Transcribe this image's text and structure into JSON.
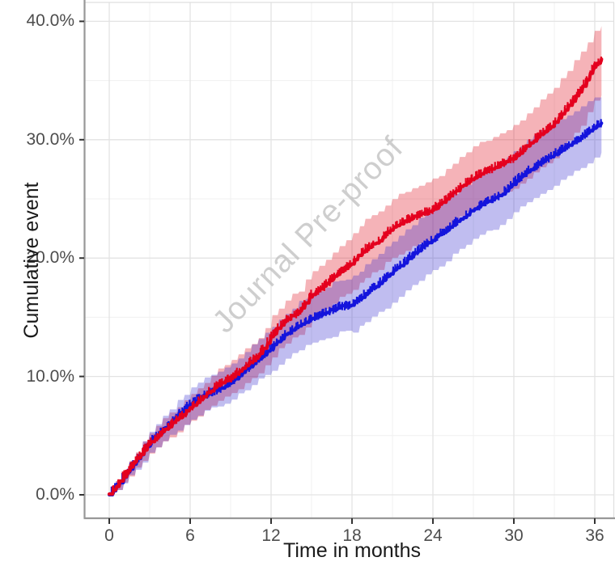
{
  "figure": {
    "watermark": "Journal Pre-proof"
  },
  "axes_style": {
    "tick_label_color": "#4d4d4d",
    "title_color": "#1a1a1a",
    "axis_line_color": "#989898",
    "major_grid_color": "#e3e3e3",
    "minor_grid_color": "#f0f0f0",
    "panel_border_color": "#dfdfdf",
    "frame_left_border_color": "#b9b9b9",
    "background": "#ffffff",
    "watermark_color": "#c2c2c2"
  },
  "chart_data": {
    "type": "line",
    "title": "",
    "xlabel": "Time in months",
    "ylabel": "Cumulative event",
    "legend": "none",
    "grid": true,
    "x_range": [
      0,
      36.5
    ],
    "y_range_pct": [
      0,
      41.5
    ],
    "x_ticks": {
      "major": [
        0,
        6,
        12,
        18,
        24,
        30,
        36
      ],
      "minor": [
        3,
        9,
        15,
        21,
        27,
        33
      ]
    },
    "y_ticks": {
      "major_labels": [
        "0.0%",
        "10.0%",
        "20.0%",
        "30.0%",
        "40.0%"
      ],
      "major_values": [
        0,
        10,
        20,
        30,
        40
      ],
      "minor_values": [
        5,
        15,
        25,
        35
      ]
    },
    "censor_marks": "dense plus-sign censoring marks along both curves",
    "x": [
      0,
      1,
      2,
      3,
      4,
      5,
      6,
      7,
      8,
      9,
      10,
      11,
      12,
      13,
      14,
      15,
      16,
      17,
      18,
      19,
      20,
      21,
      22,
      23,
      24,
      25,
      26,
      27,
      28,
      29,
      30,
      31,
      32,
      33,
      34,
      35,
      36,
      36.5
    ],
    "series": [
      {
        "name": "red-group",
        "color": "#e4001e",
        "band_color": "rgba(225,20,35,0.32)",
        "values": [
          0,
          1.5,
          3.0,
          4.4,
          5.4,
          6.4,
          7.3,
          8.3,
          9.3,
          9.9,
          10.8,
          11.7,
          13.4,
          14.7,
          15.4,
          16.9,
          17.7,
          18.8,
          19.6,
          20.8,
          21.5,
          22.6,
          23.2,
          23.7,
          24.1,
          25.0,
          26.0,
          26.8,
          27.4,
          27.9,
          28.5,
          29.5,
          30.5,
          31.4,
          32.8,
          34.3,
          36.3,
          36.8
        ],
        "ci_upper": [
          0.2,
          2.0,
          3.7,
          5.3,
          6.4,
          7.4,
          8.4,
          9.5,
          10.6,
          11.3,
          12.3,
          13.3,
          15.1,
          16.5,
          17.3,
          18.9,
          19.8,
          21.0,
          22.0,
          23.2,
          24.0,
          25.1,
          25.7,
          26.2,
          26.6,
          27.5,
          28.5,
          29.4,
          30.0,
          30.5,
          31.2,
          32.3,
          33.4,
          34.4,
          35.8,
          37.4,
          39.3,
          39.6
        ],
        "ci_lower": [
          0,
          1.0,
          2.3,
          3.6,
          4.5,
          5.4,
          6.2,
          7.1,
          8.0,
          8.6,
          9.4,
          10.2,
          11.7,
          12.9,
          13.6,
          14.9,
          15.7,
          16.7,
          17.2,
          18.4,
          19.1,
          20.1,
          20.7,
          21.2,
          21.6,
          22.5,
          23.5,
          24.2,
          24.8,
          25.3,
          25.9,
          26.8,
          27.7,
          28.5,
          29.9,
          31.3,
          33.3,
          33.7
        ]
      },
      {
        "name": "blue-group",
        "color": "#1414dc",
        "band_color": "rgba(45,35,205,0.30)",
        "values": [
          0,
          1.4,
          2.9,
          4.4,
          5.5,
          6.7,
          7.7,
          8.4,
          8.9,
          9.5,
          10.5,
          11.4,
          12.4,
          13.5,
          14.3,
          14.9,
          15.4,
          15.9,
          16.1,
          17.0,
          17.9,
          18.9,
          19.8,
          20.8,
          21.6,
          22.4,
          23.3,
          24.1,
          24.8,
          25.3,
          26.4,
          27.3,
          28.1,
          28.8,
          29.5,
          30.2,
          31.1,
          31.4
        ],
        "ci_upper": [
          0.2,
          1.9,
          3.6,
          5.3,
          6.6,
          8.0,
          9.0,
          9.8,
          10.3,
          11.0,
          12.1,
          13.1,
          14.2,
          15.4,
          16.3,
          17.0,
          17.6,
          18.2,
          18.4,
          19.4,
          20.4,
          21.5,
          22.4,
          23.4,
          24.2,
          25.0,
          25.9,
          26.7,
          27.4,
          27.9,
          29.0,
          29.9,
          30.7,
          31.4,
          32.1,
          32.8,
          33.5,
          33.6
        ],
        "ci_lower": [
          0,
          0.9,
          2.2,
          3.5,
          4.5,
          5.5,
          6.4,
          7.1,
          7.5,
          8.0,
          8.9,
          9.7,
          10.6,
          11.6,
          12.3,
          12.8,
          13.2,
          13.7,
          13.8,
          14.6,
          15.4,
          16.3,
          17.2,
          18.2,
          19.0,
          19.8,
          20.7,
          21.5,
          22.2,
          22.7,
          23.8,
          24.7,
          25.5,
          26.2,
          26.9,
          27.6,
          28.6,
          28.8
        ]
      }
    ]
  }
}
